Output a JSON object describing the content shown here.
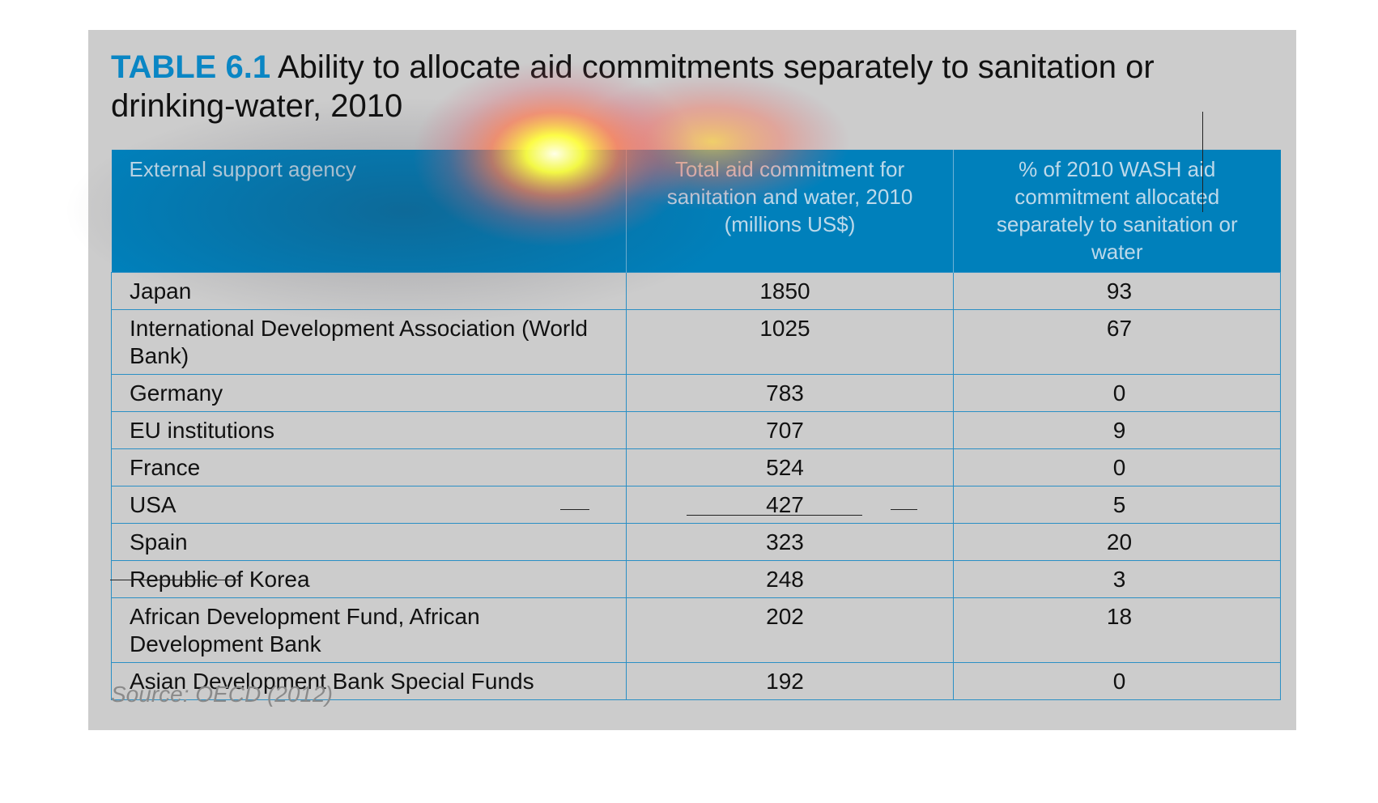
{
  "title": {
    "number": "TABLE 6.1",
    "text": "Ability to allocate aid commitments separately to sanitation or drinking-water, 2010"
  },
  "columns": [
    "External support agency",
    "Total aid commitment for sanitation and water, 2010 (millions US$)",
    "% of 2010 WASH aid commitment allocated separately to sanitation or water"
  ],
  "rows": [
    {
      "agency": "Japan",
      "total": "1850",
      "percent": "93"
    },
    {
      "agency": "International Development Association (World Bank)",
      "total": "1025",
      "percent": "67"
    },
    {
      "agency": "Germany",
      "total": "783",
      "percent": "0"
    },
    {
      "agency": "EU institutions",
      "total": "707",
      "percent": "9"
    },
    {
      "agency": "France",
      "total": "524",
      "percent": "0"
    },
    {
      "agency": "USA",
      "total": "427",
      "percent": "5"
    },
    {
      "agency": "Spain",
      "total": "323",
      "percent": "20"
    },
    {
      "agency": "Republic of Korea",
      "total": "248",
      "percent": "3"
    },
    {
      "agency": "African Development Fund, African Development Bank",
      "total": "202",
      "percent": "18"
    },
    {
      "agency": "Asian Development Bank Special Funds",
      "total": "192",
      "percent": "0"
    }
  ],
  "source": "Source: OECD (2012)",
  "colors": {
    "accent": "#0a86c4",
    "header_bg": "#0080bb",
    "panel_bg": "#cccccc"
  }
}
